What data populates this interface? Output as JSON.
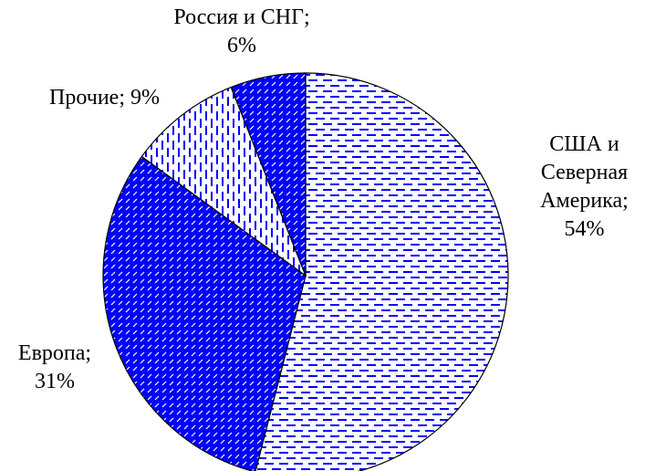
{
  "chart_data": {
    "type": "pie",
    "categories": [
      "США и Северная Америка",
      "Европа",
      "Прочие",
      "Россия и СНГ"
    ],
    "values": [
      54,
      31,
      9,
      6
    ],
    "value_labels": [
      "54%",
      "31%",
      "9%",
      "6%"
    ],
    "label_separator": ";",
    "colors": [
      "#ffffff",
      "#0000ff",
      "#ffffff",
      "#0000ff"
    ],
    "patterns": [
      "horizontal-dash",
      "diagonal-dash",
      "vertical-dash",
      "diagonal-dash"
    ]
  }
}
